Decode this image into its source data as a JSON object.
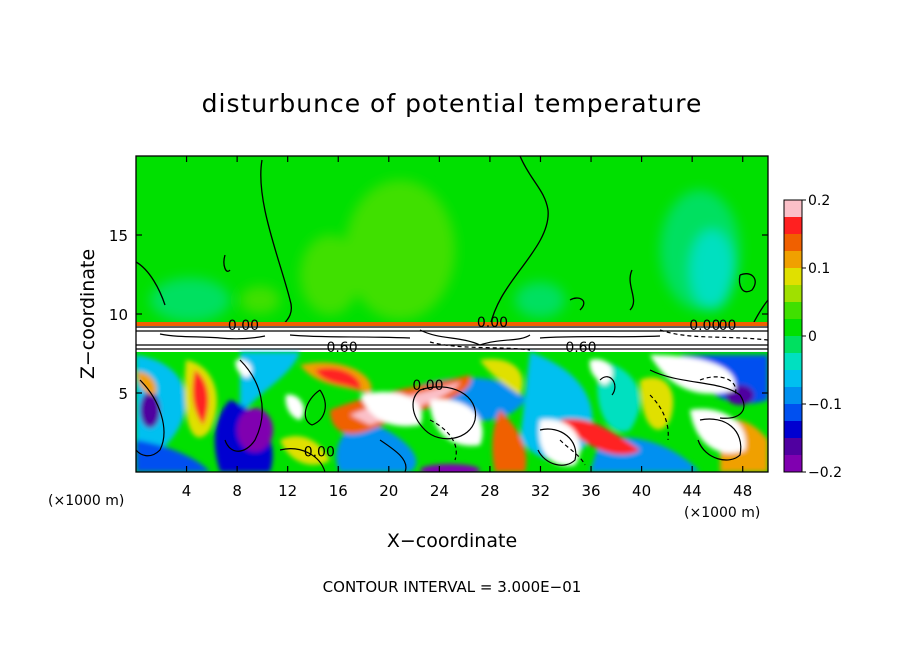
{
  "chart_data": {
    "type": "heatmap",
    "title": "disturbunce of potential temperature",
    "xlabel": "X−coordinate",
    "ylabel": "Z−coordinate",
    "x_unit": "(×1000 m)",
    "x_unit_right": "(×1000 m)",
    "xlim": [
      0,
      50
    ],
    "ylim": [
      0,
      20
    ],
    "x_ticks": [
      4,
      8,
      12,
      16,
      20,
      24,
      28,
      32,
      36,
      40,
      44,
      48
    ],
    "y_ticks": [
      5,
      10,
      15
    ],
    "colorbar": {
      "range": [
        -0.2,
        0.2
      ],
      "ticks": [
        0.2,
        0.1,
        0,
        -0.1,
        -0.2
      ],
      "tick_labels": [
        "0.2",
        "0.1",
        "0",
        "−0.1",
        "−0.2"
      ],
      "colors": [
        "#fbc0c8",
        "#ff2020",
        "#f06000",
        "#f0a000",
        "#e0e000",
        "#a0e000",
        "#40e000",
        "#00e000",
        "#00e060",
        "#00e0c0",
        "#00c0f0",
        "#0090f0",
        "#0050f0",
        "#0000d0",
        "#5000a0",
        "#8000b0"
      ]
    },
    "contour_labels": [
      {
        "x": 8.5,
        "y": 9.3,
        "text": "0.00"
      },
      {
        "x": 16.3,
        "y": 7.9,
        "text": "0.60"
      },
      {
        "x": 28.2,
        "y": 9.5,
        "text": "0.00"
      },
      {
        "x": 35.2,
        "y": 7.9,
        "text": "0.60"
      },
      {
        "x": 45.0,
        "y": 9.3,
        "text": "0.00"
      },
      {
        "x": 46.8,
        "y": 9.3,
        "text": "00"
      },
      {
        "x": 23.1,
        "y": 5.5,
        "text": "0.00"
      },
      {
        "x": 14.5,
        "y": 1.3,
        "text": "0.00"
      }
    ],
    "contour_interval": "CONTOUR INTERVAL = 3.000E−01",
    "grid": false,
    "legend": "right colorbar"
  }
}
